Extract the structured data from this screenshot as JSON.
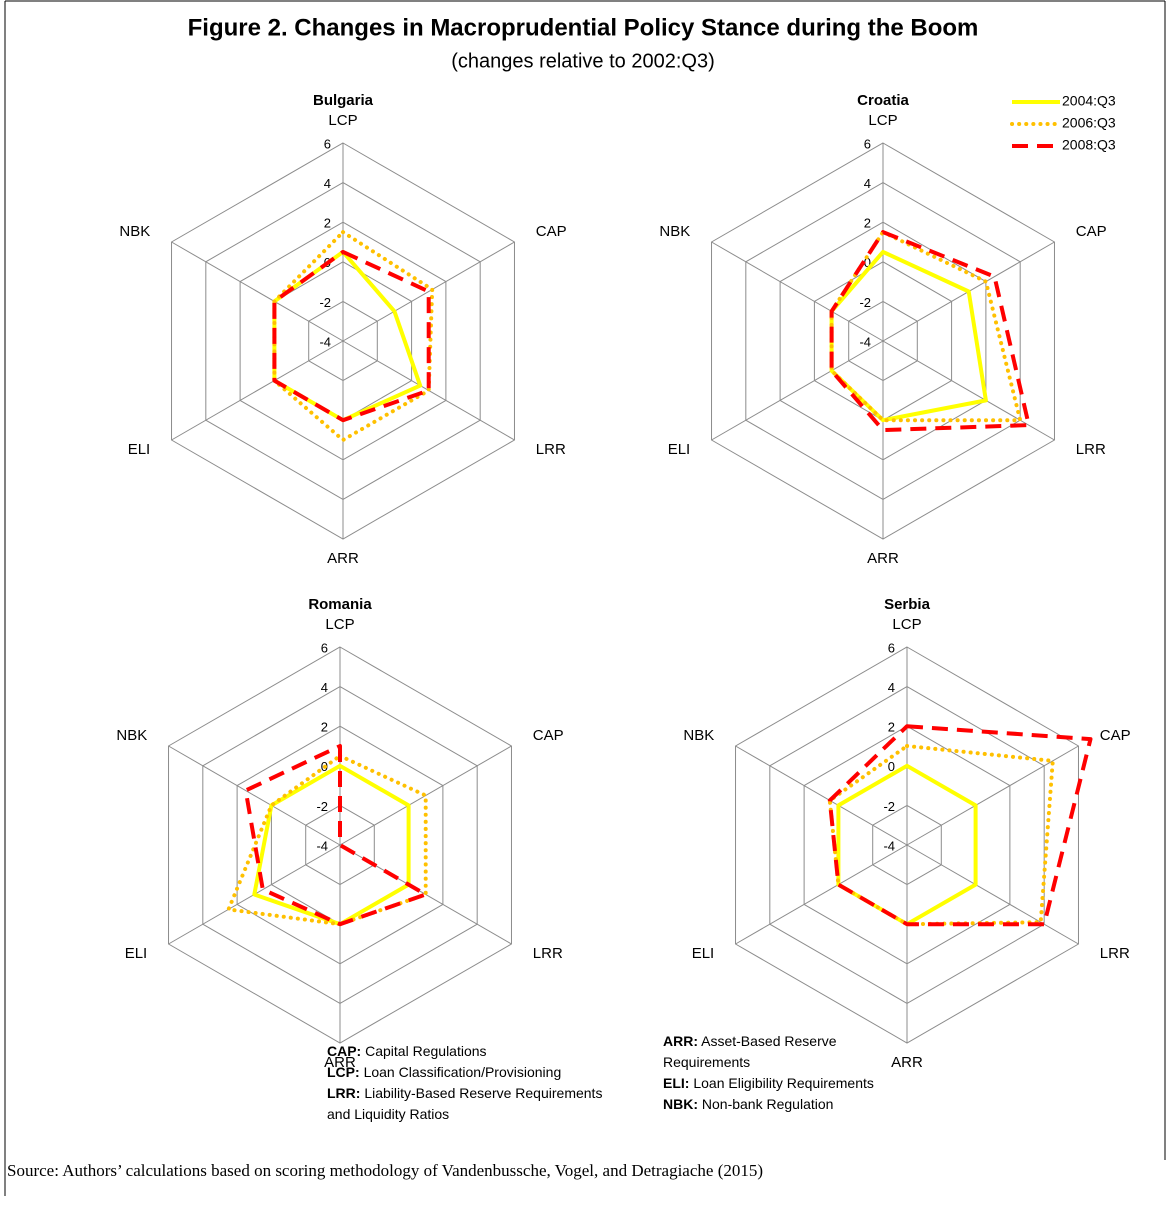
{
  "title": "Figure 2. Changes in Macroprudential Policy Stance during the Boom",
  "subtitle": "(changes relative to 2002:Q3)",
  "legend": [
    {
      "name": "2004:Q3",
      "color": "#ffff00",
      "style": "solid"
    },
    {
      "name": "2006:Q3",
      "color": "#ffc000",
      "style": "dotted"
    },
    {
      "name": "2008:Q3",
      "color": "#ff0000",
      "style": "dashed"
    }
  ],
  "chart_data": [
    {
      "type": "radar",
      "title": "Bulgaria",
      "categories": [
        "LCP",
        "CAP",
        "LRR",
        "ARR",
        "ELI",
        "NBK"
      ],
      "ylim": [
        -4,
        6
      ],
      "yticks": [
        -4,
        -2,
        0,
        2,
        4,
        6
      ],
      "series": [
        {
          "values": [
            0.5,
            -1,
            0.5,
            0,
            0,
            0
          ]
        },
        {
          "values": [
            1.5,
            1.2,
            1,
            1,
            0,
            0
          ]
        },
        {
          "values": [
            0.5,
            1,
            1,
            0,
            0,
            0
          ]
        }
      ]
    },
    {
      "type": "radar",
      "title": "Croatia",
      "categories": [
        "LCP",
        "CAP",
        "LRR",
        "ARR",
        "ELI",
        "NBK"
      ],
      "ylim": [
        -4,
        6
      ],
      "yticks": [
        -4,
        -2,
        0,
        2,
        4,
        6
      ],
      "series": [
        {
          "values": [
            0.5,
            1,
            2,
            0,
            -1,
            -1
          ]
        },
        {
          "values": [
            1.5,
            2,
            4,
            0,
            -1,
            -1
          ]
        },
        {
          "values": [
            1.5,
            2.5,
            4.5,
            0.5,
            -1,
            -1
          ]
        }
      ]
    },
    {
      "type": "radar",
      "title": "Romania",
      "categories": [
        "LCP",
        "CAP",
        "LRR",
        "ARR",
        "ELI",
        "NBK"
      ],
      "ylim": [
        -4,
        6
      ],
      "yticks": [
        -4,
        -2,
        0,
        2,
        4,
        6
      ],
      "series": [
        {
          "values": [
            0,
            0,
            0,
            0,
            1,
            0
          ]
        },
        {
          "values": [
            0.5,
            1,
            1,
            0,
            2.5,
            0
          ]
        },
        {
          "values": [
            1,
            -4,
            1,
            0,
            0.5,
            1.5
          ]
        }
      ]
    },
    {
      "type": "radar",
      "title": "Serbia",
      "categories": [
        "LCP",
        "CAP",
        "LRR",
        "ARR",
        "ELI",
        "NBK"
      ],
      "ylim": [
        -4,
        6
      ],
      "yticks": [
        -4,
        -2,
        0,
        2,
        4,
        6
      ],
      "series": [
        {
          "values": [
            0,
            0,
            0,
            0,
            0,
            0
          ]
        },
        {
          "values": [
            1,
            4.5,
            3.8,
            0,
            0,
            0.5
          ]
        },
        {
          "values": [
            2,
            6.7,
            4,
            0,
            0,
            0.5
          ]
        }
      ]
    }
  ],
  "notes": [
    [
      {
        "abbr": "CAP:",
        "text": "Capital Regulations"
      },
      {
        "abbr": "LCP:",
        "text": "Loan Classification/Provisioning"
      },
      {
        "abbr": "LRR:",
        "text": "Liability-Based Reserve Requirements and Liquidity Ratios"
      }
    ],
    [
      {
        "abbr": "ARR:",
        "text": "Asset-Based Reserve Requirements"
      },
      {
        "abbr": "ELI:",
        "text": "Loan Eligibility Requirements"
      },
      {
        "abbr": "NBK:",
        "text": "Non-bank Regulation"
      }
    ]
  ],
  "source": "Source: Authors’ calculations based on scoring methodology of Vandenbussche, Vogel, and Detragiache (2015)"
}
